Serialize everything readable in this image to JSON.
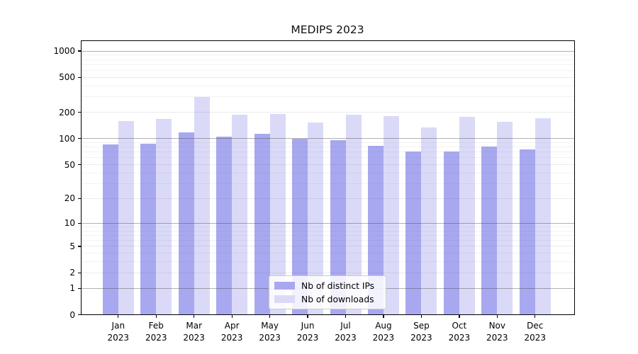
{
  "chart_data": {
    "type": "bar",
    "title": "MEDIPS 2023",
    "categories": [
      "Jan 2023",
      "Feb 2023",
      "Mar 2023",
      "Apr 2023",
      "May 2023",
      "Jun 2023",
      "Jul 2023",
      "Aug 2023",
      "Sep 2023",
      "Oct 2023",
      "Nov 2023",
      "Dec 2023"
    ],
    "series": [
      {
        "name": "Nb of distinct IPs",
        "color": "#a8a8f0",
        "values": [
          85,
          88,
          118,
          106,
          113,
          100,
          95,
          82,
          71,
          71,
          81,
          75
        ]
      },
      {
        "name": "Nb of downloads",
        "color": "#dadaf8",
        "values": [
          160,
          168,
          298,
          188,
          192,
          152,
          188,
          180,
          133,
          177,
          155,
          171
        ]
      }
    ],
    "yscale": "log1p",
    "y_ticks": [
      0,
      1,
      2,
      5,
      10,
      20,
      50,
      100,
      200,
      500,
      1000
    ],
    "ylim": [
      0,
      1323
    ],
    "grid": true,
    "legend_position": "lower center"
  }
}
